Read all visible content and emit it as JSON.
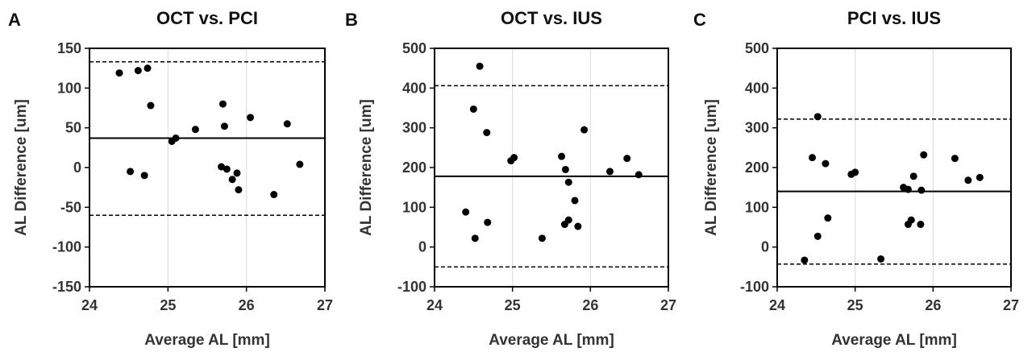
{
  "chart_data": [
    {
      "type": "scatter",
      "panel_letter": "A",
      "title": "OCT vs. PCI",
      "xlabel": "Average AL [mm]",
      "ylabel": "AL Difference [um]",
      "xlim": [
        24,
        27
      ],
      "ylim": [
        -150,
        150
      ],
      "xticks": [
        24,
        25,
        26,
        27
      ],
      "yticks": [
        150,
        100,
        50,
        0,
        -50,
        -100,
        -150
      ],
      "mean_line": 37,
      "limit_lines": [
        133,
        -60
      ],
      "points": [
        {
          "x": 24.38,
          "y": 119
        },
        {
          "x": 24.62,
          "y": 122
        },
        {
          "x": 24.74,
          "y": 125
        },
        {
          "x": 24.78,
          "y": 78
        },
        {
          "x": 24.52,
          "y": -5
        },
        {
          "x": 24.7,
          "y": -10
        },
        {
          "x": 25.05,
          "y": 33
        },
        {
          "x": 25.1,
          "y": 37
        },
        {
          "x": 25.35,
          "y": 48
        },
        {
          "x": 25.7,
          "y": 80
        },
        {
          "x": 25.72,
          "y": 52
        },
        {
          "x": 25.68,
          "y": 1
        },
        {
          "x": 25.75,
          "y": -2
        },
        {
          "x": 25.82,
          "y": -15
        },
        {
          "x": 25.88,
          "y": -7
        },
        {
          "x": 25.9,
          "y": -28
        },
        {
          "x": 26.05,
          "y": 63
        },
        {
          "x": 26.35,
          "y": -34
        },
        {
          "x": 26.52,
          "y": 55
        },
        {
          "x": 26.68,
          "y": 4
        }
      ]
    },
    {
      "type": "scatter",
      "panel_letter": "B",
      "title": "OCT vs. IUS",
      "xlabel": "Average AL [mm]",
      "ylabel": "AL Difference [um]",
      "xlim": [
        24,
        27
      ],
      "ylim": [
        -100,
        500
      ],
      "xticks": [
        24,
        25,
        26,
        27
      ],
      "yticks": [
        500,
        400,
        300,
        200,
        100,
        0,
        -100
      ],
      "mean_line": 178,
      "limit_lines": [
        406,
        -50
      ],
      "points": [
        {
          "x": 24.58,
          "y": 455
        },
        {
          "x": 24.5,
          "y": 347
        },
        {
          "x": 24.67,
          "y": 288
        },
        {
          "x": 24.98,
          "y": 217
        },
        {
          "x": 25.02,
          "y": 225
        },
        {
          "x": 24.4,
          "y": 88
        },
        {
          "x": 24.68,
          "y": 62
        },
        {
          "x": 24.52,
          "y": 22
        },
        {
          "x": 25.38,
          "y": 22
        },
        {
          "x": 25.63,
          "y": 228
        },
        {
          "x": 25.68,
          "y": 195
        },
        {
          "x": 25.72,
          "y": 163
        },
        {
          "x": 25.92,
          "y": 295
        },
        {
          "x": 25.8,
          "y": 117
        },
        {
          "x": 25.72,
          "y": 68
        },
        {
          "x": 25.67,
          "y": 57
        },
        {
          "x": 25.84,
          "y": 52
        },
        {
          "x": 26.25,
          "y": 190
        },
        {
          "x": 26.47,
          "y": 223
        },
        {
          "x": 26.62,
          "y": 182
        }
      ]
    },
    {
      "type": "scatter",
      "panel_letter": "C",
      "title": "PCI vs. IUS",
      "xlabel": "Average AL [mm]",
      "ylabel": "AL Difference [um]",
      "xlim": [
        24,
        27
      ],
      "ylim": [
        -100,
        500
      ],
      "xticks": [
        24,
        25,
        26,
        27
      ],
      "yticks": [
        500,
        400,
        300,
        200,
        100,
        0,
        -100
      ],
      "mean_line": 140,
      "limit_lines": [
        322,
        -43
      ],
      "points": [
        {
          "x": 24.52,
          "y": 328
        },
        {
          "x": 24.45,
          "y": 225
        },
        {
          "x": 24.62,
          "y": 210
        },
        {
          "x": 24.95,
          "y": 183
        },
        {
          "x": 25.0,
          "y": 188
        },
        {
          "x": 24.65,
          "y": 73
        },
        {
          "x": 24.52,
          "y": 27
        },
        {
          "x": 24.35,
          "y": -33
        },
        {
          "x": 25.33,
          "y": -30
        },
        {
          "x": 25.62,
          "y": 150
        },
        {
          "x": 25.68,
          "y": 145
        },
        {
          "x": 25.75,
          "y": 178
        },
        {
          "x": 25.88,
          "y": 232
        },
        {
          "x": 25.85,
          "y": 143
        },
        {
          "x": 25.72,
          "y": 68
        },
        {
          "x": 25.68,
          "y": 57
        },
        {
          "x": 25.84,
          "y": 57
        },
        {
          "x": 26.28,
          "y": 223
        },
        {
          "x": 26.45,
          "y": 168
        },
        {
          "x": 26.6,
          "y": 175
        }
      ]
    }
  ]
}
